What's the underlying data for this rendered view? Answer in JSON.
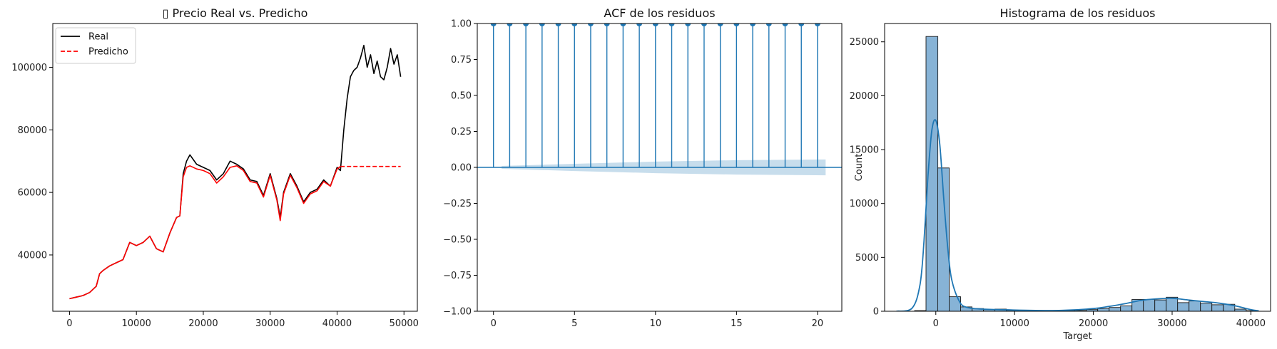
{
  "chart_data": [
    {
      "type": "line",
      "title": "▯ Precio Real vs. Predicho",
      "xlabel": "",
      "ylabel": "",
      "xlim": [
        -2500,
        52000
      ],
      "ylim": [
        22000,
        114000
      ],
      "xticks": [
        0,
        10000,
        20000,
        30000,
        40000,
        50000
      ],
      "yticks": [
        40000,
        60000,
        80000,
        100000
      ],
      "legend": {
        "placement": "top-left",
        "entries": [
          "Real",
          "Predicho"
        ]
      },
      "series": [
        {
          "name": "Real",
          "color": "#000000",
          "style": "solid",
          "x": [
            0,
            1000,
            2000,
            3000,
            4000,
            4500,
            5000,
            6000,
            7000,
            8000,
            9000,
            10000,
            11000,
            12000,
            13000,
            14000,
            15000,
            16000,
            16500,
            17000,
            17500,
            18000,
            19000,
            20000,
            21000,
            22000,
            23000,
            24000,
            25000,
            26000,
            27000,
            28000,
            29000,
            30000,
            31000,
            31500,
            32000,
            32500,
            33000,
            34000,
            35000,
            36000,
            37000,
            38000,
            39000,
            40000,
            40500,
            41000,
            41500,
            42000,
            42500,
            43000,
            43500,
            44000,
            44500,
            45000,
            45500,
            46000,
            46500,
            47000,
            47500,
            48000,
            48500,
            49000,
            49500
          ],
          "y": [
            26000,
            26500,
            27000,
            28000,
            30000,
            34000,
            35000,
            36500,
            37500,
            38500,
            44000,
            43000,
            44000,
            46000,
            42000,
            41000,
            47000,
            52000,
            52500,
            66000,
            70000,
            72000,
            69000,
            68000,
            67000,
            64000,
            66000,
            70000,
            69000,
            67500,
            64000,
            63500,
            59000,
            66000,
            58000,
            52000,
            60000,
            63000,
            66000,
            62000,
            57000,
            60000,
            61000,
            64000,
            62000,
            68000,
            67000,
            80000,
            90000,
            97000,
            99000,
            100000,
            103000,
            107000,
            100000,
            104000,
            98000,
            102000,
            97000,
            96000,
            100000,
            106000,
            101000,
            104000,
            97000
          ]
        },
        {
          "name": "Predicho",
          "color": "#ff0000",
          "style": "solid-then-dashed",
          "dash_from_x": 40500,
          "x": [
            0,
            1000,
            2000,
            3000,
            4000,
            4500,
            5000,
            6000,
            7000,
            8000,
            9000,
            10000,
            11000,
            12000,
            13000,
            14000,
            15000,
            16000,
            16500,
            17000,
            17500,
            18000,
            19000,
            20000,
            21000,
            22000,
            23000,
            24000,
            25000,
            26000,
            27000,
            28000,
            29000,
            30000,
            31000,
            31500,
            32000,
            32500,
            33000,
            34000,
            35000,
            36000,
            37000,
            38000,
            39000,
            40000,
            40500,
            49500
          ],
          "y": [
            26000,
            26500,
            27000,
            28000,
            30000,
            34000,
            35000,
            36500,
            37500,
            38500,
            44000,
            43000,
            44000,
            46000,
            42000,
            41000,
            47000,
            52000,
            52500,
            65000,
            68000,
            68500,
            67500,
            67000,
            66000,
            63000,
            65000,
            68000,
            68500,
            67000,
            63500,
            63000,
            58500,
            65500,
            57500,
            51000,
            59500,
            62500,
            65500,
            61500,
            56500,
            59500,
            60500,
            63500,
            62000,
            67500,
            68300,
            68300
          ]
        }
      ]
    },
    {
      "type": "stem",
      "title": "ACF de los residuos",
      "xlabel": "",
      "ylabel": "",
      "xlim": [
        -1,
        21.5
      ],
      "ylim": [
        -1.0,
        1.0
      ],
      "xticks": [
        0,
        5,
        10,
        15,
        20
      ],
      "yticks": [
        -1.0,
        -0.75,
        -0.5,
        -0.25,
        0.0,
        0.25,
        0.5,
        0.75,
        1.0
      ],
      "ytick_labels": [
        "−1.00",
        "−0.75",
        "−0.50",
        "−0.25",
        "0.00",
        "0.25",
        "0.50",
        "0.75",
        "1.00"
      ],
      "color": "#1f77b4",
      "lags": [
        0,
        1,
        2,
        3,
        4,
        5,
        6,
        7,
        8,
        9,
        10,
        11,
        12,
        13,
        14,
        15,
        16,
        17,
        18,
        19,
        20
      ],
      "values": [
        1,
        1,
        1,
        1,
        1,
        1,
        1,
        1,
        1,
        1,
        1,
        1,
        1,
        1,
        1,
        1,
        1,
        1,
        1,
        1,
        1
      ],
      "confidence_band": {
        "lags": [
          0.5,
          5,
          10,
          15,
          20.5
        ],
        "upper": [
          0.01,
          0.025,
          0.04,
          0.05,
          0.055
        ],
        "lower": [
          -0.01,
          -0.025,
          -0.04,
          -0.05,
          -0.055
        ]
      }
    },
    {
      "type": "bar",
      "subtype": "histogram-with-kde",
      "title": "Histograma de los residuos",
      "xlabel": "Target",
      "ylabel": "Count",
      "xlim": [
        -6500,
        42500
      ],
      "ylim": [
        0,
        26700
      ],
      "xticks": [
        0,
        10000,
        20000,
        30000,
        40000
      ],
      "yticks": [
        0,
        5000,
        10000,
        15000,
        20000,
        25000
      ],
      "bar_color": "#87b3d6",
      "edge_color": "#1a1a1a",
      "kde_color": "#1f77b4",
      "bins": [
        {
          "from": -2700,
          "to": -1250,
          "count": 60
        },
        {
          "from": -1250,
          "to": 250,
          "count": 25500
        },
        {
          "from": 250,
          "to": 1700,
          "count": 13300
        },
        {
          "from": 1700,
          "to": 3150,
          "count": 1350
        },
        {
          "from": 3150,
          "to": 4600,
          "count": 400
        },
        {
          "from": 4600,
          "to": 6050,
          "count": 250
        },
        {
          "from": 6050,
          "to": 7500,
          "count": 150
        },
        {
          "from": 7500,
          "to": 8950,
          "count": 200
        },
        {
          "from": 8950,
          "to": 10400,
          "count": 80
        },
        {
          "from": 10400,
          "to": 11850,
          "count": 60
        },
        {
          "from": 11850,
          "to": 13300,
          "count": 50
        },
        {
          "from": 13300,
          "to": 14750,
          "count": 50
        },
        {
          "from": 14750,
          "to": 16200,
          "count": 60
        },
        {
          "from": 16200,
          "to": 17650,
          "count": 70
        },
        {
          "from": 17650,
          "to": 19100,
          "count": 80
        },
        {
          "from": 19100,
          "to": 20550,
          "count": 150
        },
        {
          "from": 20550,
          "to": 22000,
          "count": 250
        },
        {
          "from": 22000,
          "to": 23450,
          "count": 350
        },
        {
          "from": 23450,
          "to": 24900,
          "count": 500
        },
        {
          "from": 24900,
          "to": 26350,
          "count": 1100
        },
        {
          "from": 26350,
          "to": 27800,
          "count": 1100
        },
        {
          "from": 27800,
          "to": 29250,
          "count": 1050
        },
        {
          "from": 29250,
          "to": 30700,
          "count": 1300
        },
        {
          "from": 30700,
          "to": 32150,
          "count": 800
        },
        {
          "from": 32150,
          "to": 33600,
          "count": 950
        },
        {
          "from": 33600,
          "to": 35050,
          "count": 750
        },
        {
          "from": 35050,
          "to": 36500,
          "count": 600
        },
        {
          "from": 36500,
          "to": 37950,
          "count": 650
        },
        {
          "from": 37950,
          "to": 39400,
          "count": 200
        },
        {
          "from": 39400,
          "to": 40850,
          "count": 50
        }
      ],
      "kde": {
        "x": [
          -5000,
          -3000,
          -2000,
          -1500,
          -1000,
          -500,
          0,
          500,
          1000,
          1500,
          2000,
          3000,
          4000,
          6000,
          8000,
          12000,
          16000,
          20000,
          22000,
          24000,
          26000,
          28000,
          30000,
          32000,
          34000,
          36000,
          38000,
          40000,
          41000
        ],
        "y": [
          0,
          300,
          2500,
          6500,
          12500,
          16800,
          17700,
          15500,
          10500,
          6000,
          3000,
          900,
          350,
          200,
          150,
          80,
          80,
          250,
          450,
          700,
          1000,
          1150,
          1200,
          1050,
          900,
          750,
          500,
          150,
          40
        ]
      }
    }
  ]
}
